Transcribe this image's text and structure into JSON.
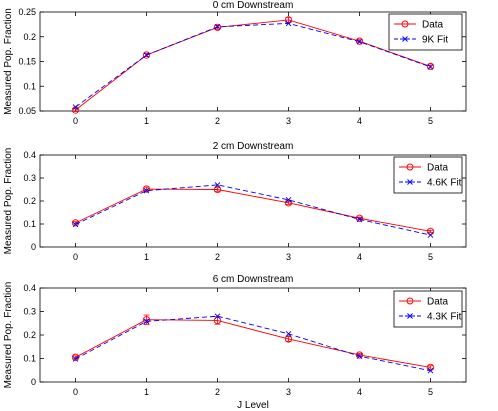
{
  "chart_data": [
    {
      "type": "line",
      "title": "0 cm Downstream",
      "xlabel": "",
      "ylabel": "Measured Pop. Fraction",
      "x": [
        0,
        1,
        2,
        3,
        4,
        5
      ],
      "xlim": [
        -0.5,
        5.5
      ],
      "ylim": [
        0.05,
        0.25
      ],
      "yticks": [
        "0.05",
        "0.1",
        "0.15",
        "0.2",
        "0.25"
      ],
      "xticks": [
        "0",
        "1",
        "2",
        "3",
        "4",
        "5"
      ],
      "legend_position": "top-right",
      "legend_style": "boxed",
      "series": [
        {
          "name": "Data",
          "color": "#ff0000",
          "marker": "circle",
          "linestyle": "solid",
          "values": [
            0.052,
            0.163,
            0.219,
            0.234,
            0.191,
            0.14
          ],
          "errors": [
            0.003,
            0.003,
            0.004,
            0.005,
            0.003,
            0.003
          ]
        },
        {
          "name": "9K Fit",
          "color": "#0000ff",
          "marker": "x",
          "linestyle": "dashed",
          "values": [
            0.058,
            0.163,
            0.22,
            0.227,
            0.19,
            0.139
          ]
        }
      ]
    },
    {
      "type": "line",
      "title": "2 cm Downstream",
      "xlabel": "",
      "ylabel": "Measured Pop. Fraction",
      "x": [
        0,
        1,
        2,
        3,
        4,
        5
      ],
      "xlim": [
        -0.5,
        5.5
      ],
      "ylim": [
        0,
        0.4
      ],
      "yticks": [
        "0",
        "0.1",
        "0.2",
        "0.3",
        "0.4"
      ],
      "xticks": [
        "0",
        "1",
        "2",
        "3",
        "4",
        "5"
      ],
      "legend_position": "top-right",
      "legend_style": "boxed",
      "series": [
        {
          "name": "Data",
          "color": "#ff0000",
          "marker": "circle",
          "linestyle": "solid",
          "values": [
            0.105,
            0.252,
            0.25,
            0.192,
            0.125,
            0.068
          ],
          "errors": [
            0.005,
            0.008,
            0.008,
            0.007,
            0.005,
            0.005
          ]
        },
        {
          "name": "4.6K Fit",
          "color": "#0000ff",
          "marker": "x",
          "linestyle": "dashed",
          "values": [
            0.098,
            0.245,
            0.27,
            0.205,
            0.12,
            0.052
          ]
        }
      ]
    },
    {
      "type": "line",
      "title": "6 cm Downstream",
      "xlabel": "J Level",
      "ylabel": "Measured Pop. Fraction",
      "x": [
        0,
        1,
        2,
        3,
        4,
        5
      ],
      "xlim": [
        -0.5,
        5.5
      ],
      "ylim": [
        0,
        0.4
      ],
      "yticks": [
        "0",
        "0.1",
        "0.2",
        "0.3",
        "0.4"
      ],
      "xticks": [
        "0",
        "1",
        "2",
        "3",
        "4",
        "5"
      ],
      "legend_position": "top-right",
      "legend_style": "boxed",
      "series": [
        {
          "name": "Data",
          "color": "#ff0000",
          "marker": "circle",
          "linestyle": "solid",
          "values": [
            0.105,
            0.265,
            0.262,
            0.183,
            0.115,
            0.062
          ],
          "errors": [
            0.006,
            0.02,
            0.016,
            0.01,
            0.007,
            0.007
          ]
        },
        {
          "name": "4.3K Fit",
          "color": "#0000ff",
          "marker": "x",
          "linestyle": "dashed",
          "values": [
            0.098,
            0.258,
            0.28,
            0.205,
            0.11,
            0.048
          ]
        }
      ]
    }
  ]
}
